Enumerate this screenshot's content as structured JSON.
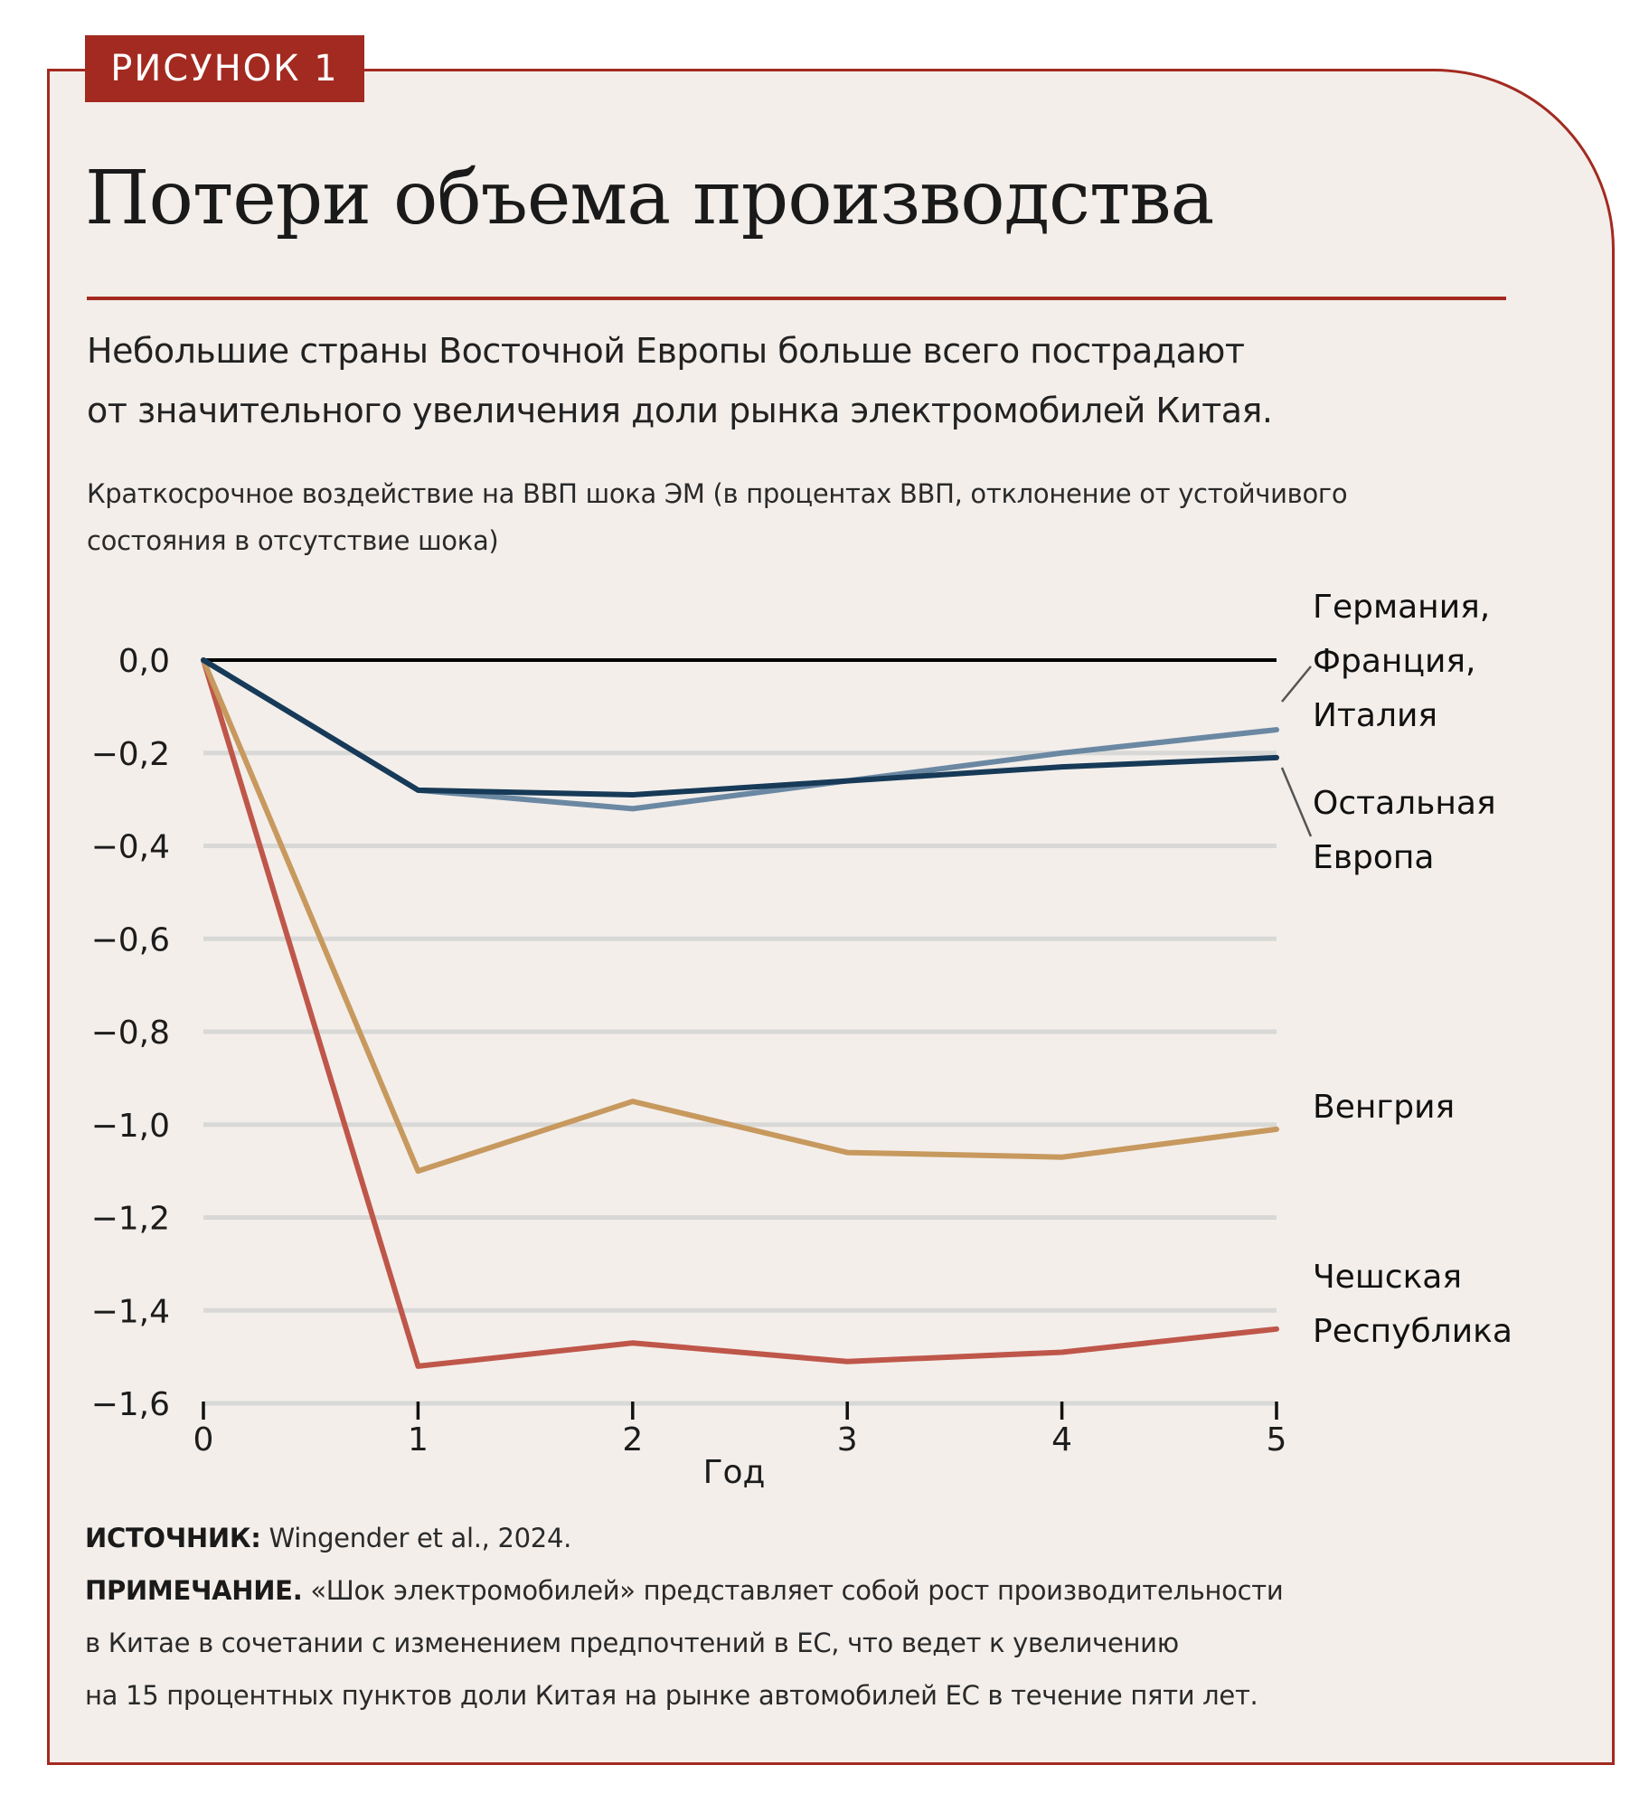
{
  "badge": "РИСУНОК 1",
  "title": "Потери объема производства",
  "subtitle": [
    "Небольшие страны Восточной Европы больше всего пострадают",
    "от значительного увеличения доли рынка электромобилей Китая."
  ],
  "description": [
    "Краткосрочное воздействие на ВВП шока ЭМ (в процентах ВВП, отклонение от устойчивого",
    "состояния в отсутствие шока)"
  ],
  "colors": {
    "accent": "#a32a20",
    "background": "#f3eeea",
    "germany_france_italy": "#6b88a3",
    "rest_of_europe": "#163a57",
    "hungary": "#c7995e",
    "czech_republic": "#bf564a",
    "zero_line": "#000000",
    "grid": "#d8d8d6"
  },
  "chart_data": {
    "type": "line",
    "title": "Потери объема производства",
    "xlabel": "Год",
    "ylabel": "",
    "x": [
      0,
      1,
      2,
      3,
      4,
      5
    ],
    "x_tick_labels": [
      "0",
      "1",
      "2",
      "3",
      "4",
      "5"
    ],
    "ylim": [
      -1.6,
      0.0
    ],
    "y_ticks": [
      0.0,
      -0.2,
      -0.4,
      -0.6,
      -0.8,
      -1.0,
      -1.2,
      -1.4,
      -1.6
    ],
    "y_tick_labels": [
      "0,0",
      "−0,2",
      "−0,4",
      "−0,6",
      "−0,8",
      "−1,0",
      "−1,2",
      "−1,4",
      "−1,6"
    ],
    "grid": true,
    "legend": "direct labels at right",
    "series": [
      {
        "name": "Германия, Франция, Италия",
        "label_lines": [
          "Германия,",
          "Франция,",
          "Италия"
        ],
        "color_key": "germany_france_italy",
        "values": [
          0.0,
          -0.28,
          -0.32,
          -0.26,
          -0.2,
          -0.15
        ]
      },
      {
        "name": "Остальная Европа",
        "label_lines": [
          "Остальная",
          "Европа"
        ],
        "color_key": "rest_of_europe",
        "values": [
          0.0,
          -0.28,
          -0.29,
          -0.26,
          -0.23,
          -0.21
        ]
      },
      {
        "name": "Венгрия",
        "label_lines": [
          "Венгрия"
        ],
        "color_key": "hungary",
        "values": [
          0.0,
          -1.1,
          -0.95,
          -1.06,
          -1.07,
          -1.01
        ]
      },
      {
        "name": "Чешская Республика",
        "label_lines": [
          "Чешская",
          "Республика"
        ],
        "color_key": "czech_republic",
        "values": [
          0.0,
          -1.52,
          -1.47,
          -1.51,
          -1.49,
          -1.44
        ]
      }
    ]
  },
  "footer": {
    "source_label": "ИСТОЧНИК:",
    "source_text": " Wingender et al., 2024.",
    "note_label": "ПРИМЕЧАНИЕ.",
    "note_lines": [
      " «Шок электромобилей» представляет собой рост производительности",
      "в Китае в сочетании с изменением предпочтений в ЕС, что ведет к увеличению",
      "на 15 процентных пунктов доли Китая на рынке автомобилей ЕС в течение пяти лет."
    ]
  }
}
